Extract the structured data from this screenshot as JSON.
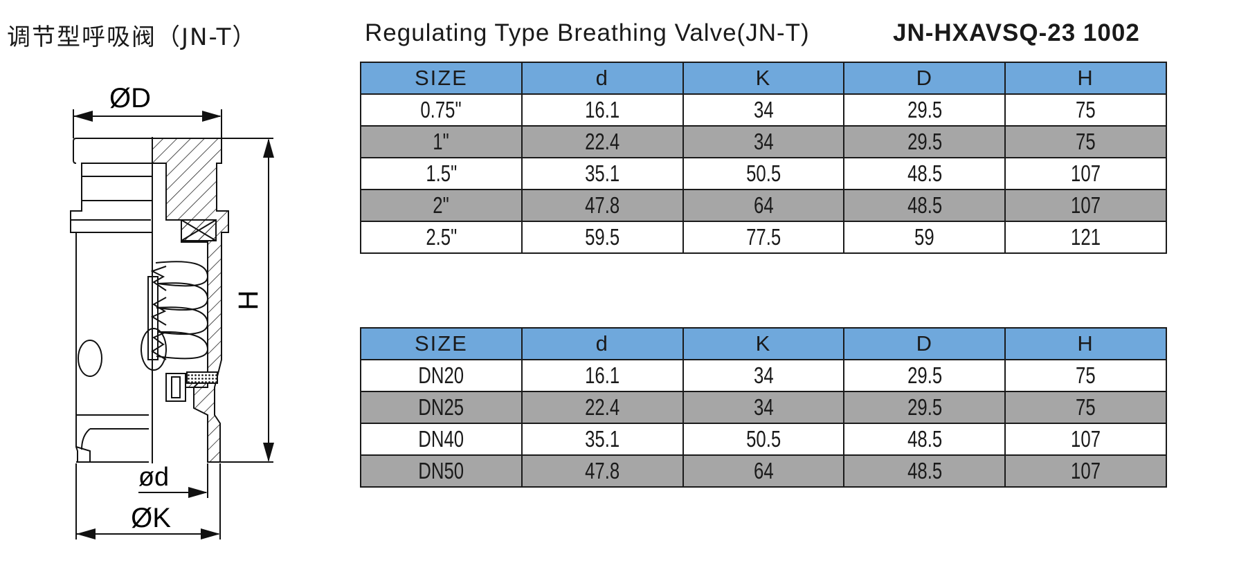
{
  "title_cn": "调节型呼吸阀（JN-T）",
  "title_en": "Regulating Type Breathing Valve(JN-T)",
  "code": "JN-HXAVSQ-23 1002",
  "drawing": {
    "label_D": "ØD",
    "label_H": "H",
    "label_d": "ød",
    "label_K": "ØK"
  },
  "table_inch": {
    "headers": [
      "SIZE",
      "d",
      "K",
      "D",
      "H"
    ],
    "rows": [
      [
        "0.75\"",
        "16.1",
        "34",
        "29.5",
        "75"
      ],
      [
        "1\"",
        "22.4",
        "34",
        "29.5",
        "75"
      ],
      [
        "1.5\"",
        "35.1",
        "50.5",
        "48.5",
        "107"
      ],
      [
        "2\"",
        "47.8",
        "64",
        "48.5",
        "107"
      ],
      [
        "2.5\"",
        "59.5",
        "77.5",
        "59",
        "121"
      ]
    ]
  },
  "table_dn": {
    "headers": [
      "SIZE",
      "d",
      "K",
      "D",
      "H"
    ],
    "rows": [
      [
        "DN20",
        "16.1",
        "34",
        "29.5",
        "75"
      ],
      [
        "DN25",
        "22.4",
        "34",
        "29.5",
        "75"
      ],
      [
        "DN40",
        "35.1",
        "50.5",
        "48.5",
        "107"
      ],
      [
        "DN50",
        "47.8",
        "64",
        "48.5",
        "107"
      ]
    ]
  },
  "colors": {
    "header_blue": "#6fa8dc",
    "row_grey": "#a6a6a6"
  }
}
